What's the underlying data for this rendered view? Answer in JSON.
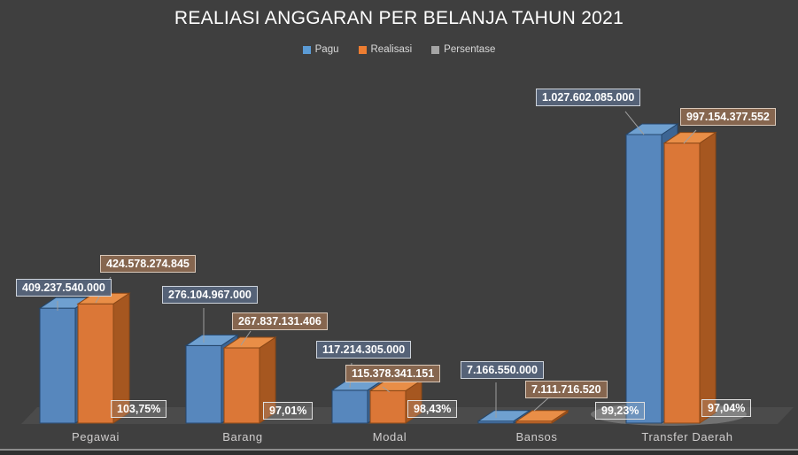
{
  "title": "REALIASI ANGGARAN PER BELANJA TAHUN 2021",
  "legend": {
    "items": [
      {
        "label": "Pagu",
        "color": "#5B9BD5"
      },
      {
        "label": "Realisasi",
        "color": "#ED7D31"
      },
      {
        "label": "Persentase",
        "color": "#A5A5A5"
      }
    ]
  },
  "colors": {
    "background": "#3F3F3F",
    "title_text": "#FFFFFF",
    "legend_text": "#D9D9D9",
    "category_text": "#CFCDCD",
    "floor": "#4B4B4B",
    "leader_line": "#9E9E9E"
  },
  "chart_data": {
    "type": "bar",
    "style": "3d-clustered-column",
    "title": "REALIASI ANGGARAN PER BELANJA TAHUN 2021",
    "legend_position": "top",
    "grid": false,
    "xlabel": "",
    "ylabel": "",
    "ylim": [
      0,
      1027602085000
    ],
    "categories": [
      "Pegawai",
      "Barang",
      "Modal",
      "Bansos",
      "Transfer Daerah"
    ],
    "series": [
      {
        "name": "Pagu",
        "color": "#5B9BD5",
        "shades": {
          "front": "#5787BD",
          "top": "#6FA0D0",
          "side": "#3D6593",
          "edge": "#24466B"
        },
        "values": [
          409237540000,
          276104967000,
          117214305000,
          7166550000,
          1027602085000
        ],
        "labels": [
          "409.237.540.000",
          "276.104.967.000",
          "117.214.305.000",
          "7.166.550.000",
          "1.027.602.085.000"
        ]
      },
      {
        "name": "Realisasi",
        "color": "#ED7D31",
        "shades": {
          "front": "#DB7737",
          "top": "#E98E47",
          "side": "#A65720",
          "edge": "#8A4716"
        },
        "values": [
          424578274845,
          267837131406,
          115378341151,
          7111716520,
          997154377552
        ],
        "labels": [
          "424.578.274.845",
          "267.837.131.406",
          "115.378.341.151",
          "7.111.716.520",
          "997.154.377.552"
        ]
      },
      {
        "name": "Persentase",
        "color": "#A5A5A5",
        "values": [
          103.75,
          97.01,
          98.43,
          99.23,
          97.04
        ],
        "labels": [
          "103,75%",
          "97,01%",
          "98,43%",
          "99,23%",
          "97,04%"
        ]
      }
    ]
  }
}
